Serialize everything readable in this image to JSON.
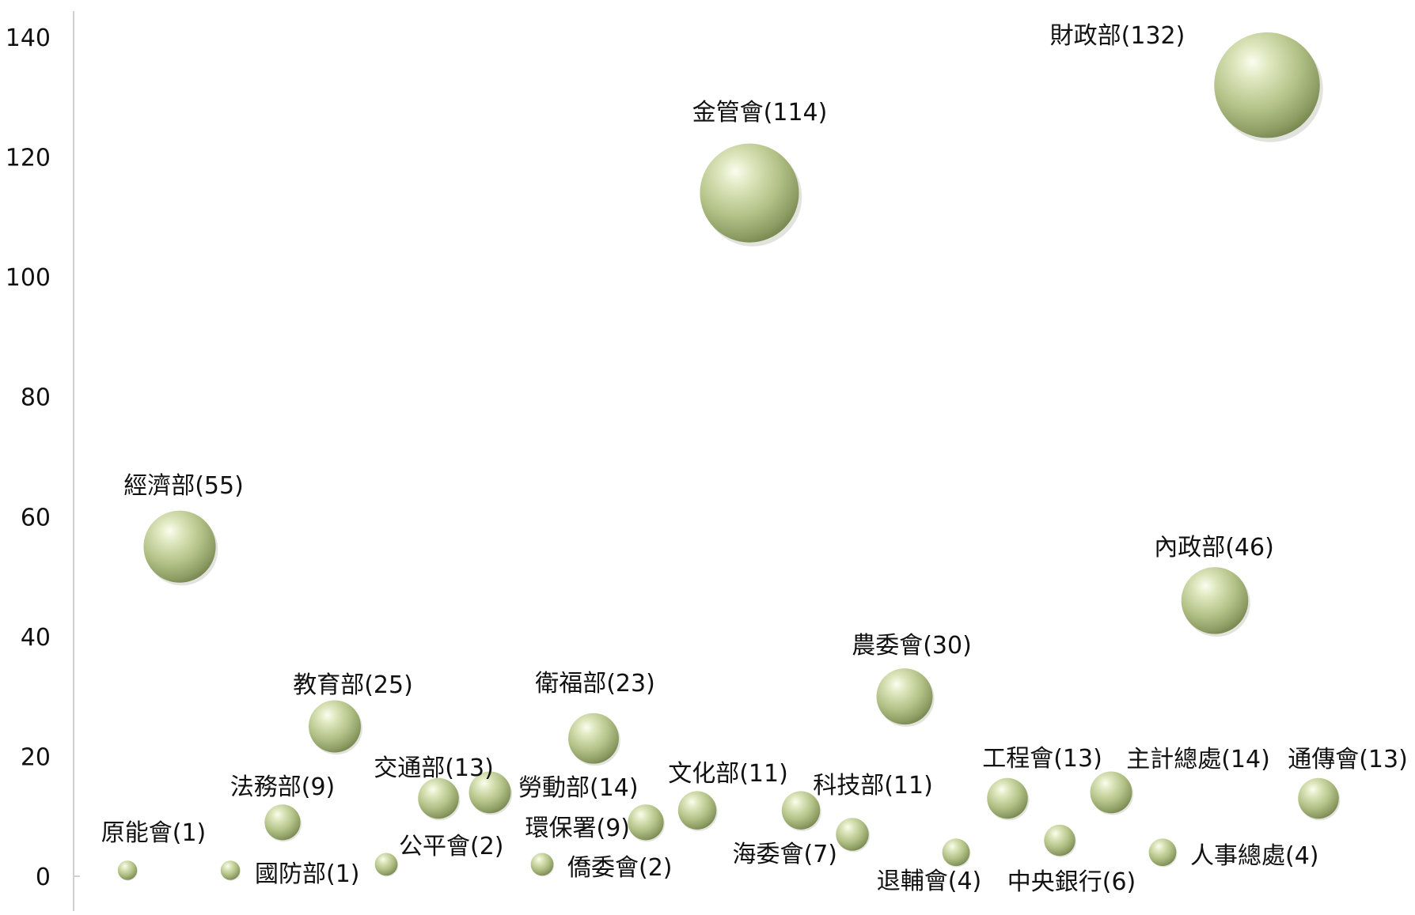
{
  "chart_data": {
    "type": "scatter",
    "subtype": "bubble",
    "title": "",
    "xlabel": "",
    "ylabel": "",
    "ylim": [
      0,
      140
    ],
    "yticks": [
      "0",
      "20",
      "40",
      "60",
      "80",
      "100",
      "120",
      "140"
    ],
    "grid": false,
    "legend": "none",
    "bubble_color": "#b5c48a",
    "points": [
      {
        "label": "原能會(1)",
        "y": 1
      },
      {
        "label": "經濟部(55)",
        "y": 55
      },
      {
        "label": "國防部(1)",
        "y": 1
      },
      {
        "label": "法務部(9)",
        "y": 9
      },
      {
        "label": "教育部(25)",
        "y": 25
      },
      {
        "label": "公平會(2)",
        "y": 2
      },
      {
        "label": "交通部(13)",
        "y": 13
      },
      {
        "label": "勞動部(14)",
        "y": 14
      },
      {
        "label": "僑委會(2)",
        "y": 2
      },
      {
        "label": "衛福部(23)",
        "y": 23
      },
      {
        "label": "環保署(9)",
        "y": 9
      },
      {
        "label": "文化部(11)",
        "y": 11
      },
      {
        "label": "金管會(114)",
        "y": 114
      },
      {
        "label": "科技部(11)",
        "y": 11
      },
      {
        "label": "海委會(7)",
        "y": 7
      },
      {
        "label": "農委會(30)",
        "y": 30
      },
      {
        "label": "退輔會(4)",
        "y": 4
      },
      {
        "label": "工程會(13)",
        "y": 13
      },
      {
        "label": "中央銀行(6)",
        "y": 6
      },
      {
        "label": "主計總處(14)",
        "y": 14
      },
      {
        "label": "人事總處(4)",
        "y": 4
      },
      {
        "label": "內政部(46)",
        "y": 46
      },
      {
        "label": "財政部(132)",
        "y": 132
      },
      {
        "label": "通傳會(13)",
        "y": 13
      }
    ]
  }
}
